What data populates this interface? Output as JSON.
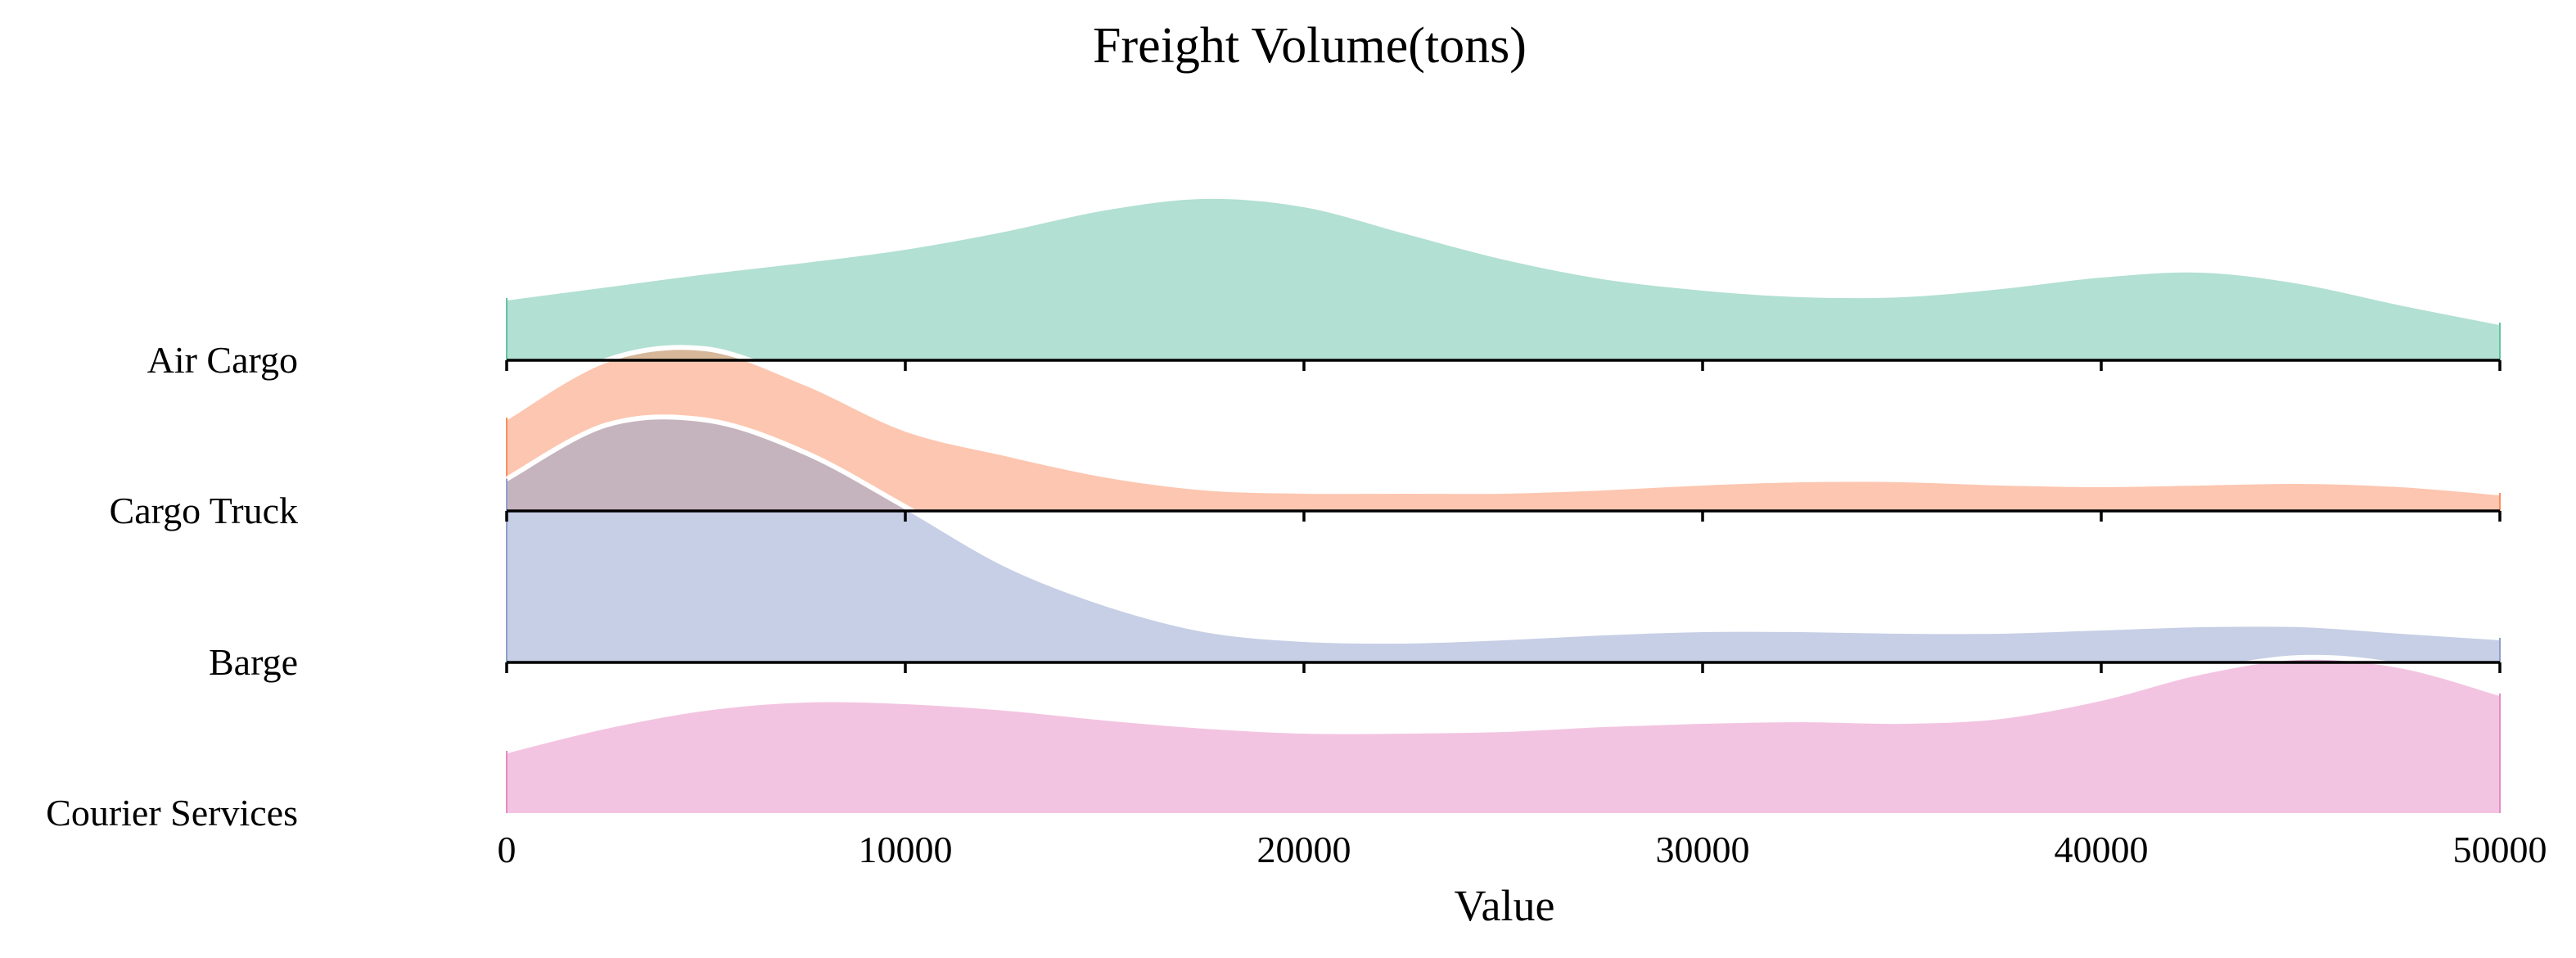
{
  "chart_data": {
    "type": "area",
    "subtype": "ridgeline",
    "title": "Freight Volume(tons)",
    "xlabel": "Value",
    "ylabel": "",
    "xlim": [
      0,
      50000
    ],
    "x_ticks": [
      0,
      10000,
      20000,
      30000,
      40000,
      50000
    ],
    "grid": false,
    "legend": "none",
    "series": [
      {
        "name": "Air Cargo",
        "color": "#66c2a5",
        "x": [
          0,
          2500,
          5000,
          7500,
          10000,
          12500,
          15000,
          17500,
          20000,
          22500,
          25000,
          27500,
          30000,
          32500,
          35000,
          37500,
          40000,
          42500,
          45000,
          47500,
          50000
        ],
        "density": [
          0.38,
          0.46,
          0.54,
          0.61,
          0.69,
          0.8,
          0.93,
          1.0,
          0.95,
          0.79,
          0.63,
          0.51,
          0.44,
          0.4,
          0.4,
          0.45,
          0.52,
          0.55,
          0.48,
          0.35,
          0.23
        ]
      },
      {
        "name": "Cargo Truck",
        "color": "#fc8d62",
        "x": [
          0,
          2500,
          5000,
          7500,
          10000,
          12500,
          15000,
          17500,
          20000,
          22500,
          25000,
          27500,
          30000,
          32500,
          35000,
          37500,
          40000,
          42500,
          45000,
          47500,
          50000
        ],
        "density": [
          0.57,
          0.92,
          0.99,
          0.78,
          0.5,
          0.35,
          0.22,
          0.14,
          0.12,
          0.12,
          0.12,
          0.14,
          0.17,
          0.19,
          0.19,
          0.17,
          0.16,
          0.17,
          0.18,
          0.16,
          0.11
        ]
      },
      {
        "name": "Barge",
        "color": "#8da0cb",
        "x": [
          0,
          2500,
          5000,
          7500,
          10000,
          12500,
          15000,
          17500,
          20000,
          22500,
          25000,
          27500,
          30000,
          32500,
          35000,
          37500,
          40000,
          42500,
          45000,
          47500,
          50000
        ],
        "density": [
          1.12,
          1.45,
          1.48,
          1.28,
          0.95,
          0.6,
          0.36,
          0.2,
          0.14,
          0.13,
          0.15,
          0.18,
          0.2,
          0.2,
          0.19,
          0.19,
          0.21,
          0.23,
          0.23,
          0.19,
          0.15
        ]
      },
      {
        "name": "Courier Services",
        "color": "#e78ac3",
        "x": [
          0,
          2500,
          5000,
          7500,
          10000,
          12500,
          15000,
          17500,
          20000,
          22500,
          25000,
          27500,
          30000,
          32500,
          35000,
          37500,
          40000,
          42500,
          45000,
          47500,
          50000
        ],
        "density": [
          0.38,
          0.53,
          0.64,
          0.69,
          0.68,
          0.64,
          0.58,
          0.53,
          0.5,
          0.5,
          0.51,
          0.54,
          0.56,
          0.57,
          0.56,
          0.59,
          0.7,
          0.86,
          0.95,
          0.9,
          0.73
        ]
      }
    ]
  }
}
